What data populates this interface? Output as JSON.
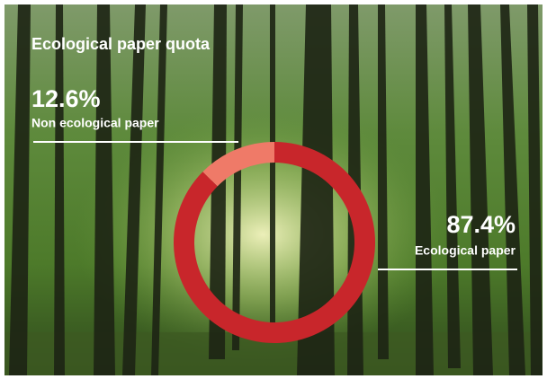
{
  "chart_data": {
    "type": "donut",
    "title": "Ecological paper quota",
    "categories": [
      "Non ecological paper",
      "Ecological paper"
    ],
    "values": [
      12.6,
      87.4
    ],
    "value_labels": [
      "12.6%",
      "87.4%"
    ],
    "colors": [
      "#ef7a68",
      "#c8262b"
    ]
  }
}
